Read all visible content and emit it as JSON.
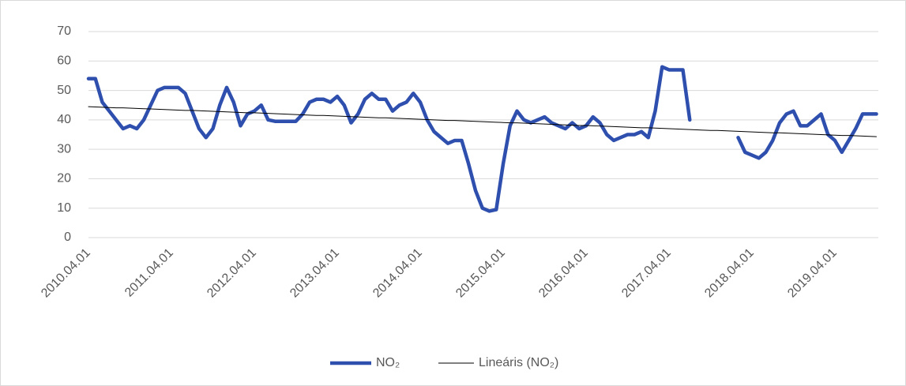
{
  "chart_data": {
    "type": "line",
    "categories": [
      "2010.04.01",
      null,
      null,
      null,
      null,
      null,
      null,
      null,
      null,
      null,
      null,
      null,
      "2011.04.01",
      null,
      null,
      null,
      null,
      null,
      null,
      null,
      null,
      null,
      null,
      null,
      "2012.04.01",
      null,
      null,
      null,
      null,
      null,
      null,
      null,
      null,
      null,
      null,
      null,
      "2013.04.01",
      null,
      null,
      null,
      null,
      null,
      null,
      null,
      null,
      null,
      null,
      null,
      "2014.04.01",
      null,
      null,
      null,
      null,
      null,
      null,
      null,
      null,
      null,
      null,
      null,
      "2015.04.01",
      null,
      null,
      null,
      null,
      null,
      null,
      null,
      null,
      null,
      null,
      null,
      "2016.04.01",
      null,
      null,
      null,
      null,
      null,
      null,
      null,
      null,
      null,
      null,
      null,
      "2017.04.01",
      null,
      null,
      null,
      null,
      null,
      null,
      null,
      null,
      null,
      null,
      null,
      "2018.04.01",
      null,
      null,
      null,
      null,
      null,
      null,
      null,
      null,
      null,
      null,
      null,
      "2019.04.01",
      null,
      null,
      null,
      null,
      null,
      null
    ],
    "series": [
      {
        "name": "NO₂",
        "color": "#2e4fad",
        "width": 4.5,
        "values": [
          54,
          54,
          46,
          43,
          40,
          37,
          38,
          37,
          40,
          45,
          50,
          51,
          51,
          51,
          49,
          43,
          37,
          34,
          37,
          45,
          51,
          46,
          38,
          42,
          43,
          45,
          40,
          39.5,
          39.5,
          39.5,
          39.5,
          42,
          46,
          47,
          47,
          46,
          48,
          45,
          39,
          42,
          47,
          49,
          47,
          47,
          43,
          45,
          46,
          49,
          46,
          40,
          36,
          34,
          32,
          33,
          33,
          25,
          16,
          10,
          9,
          9.5,
          25,
          38,
          43,
          40,
          39,
          40,
          41,
          39,
          38,
          37,
          39,
          37,
          38,
          41,
          39,
          35,
          33,
          34,
          35,
          35,
          36,
          34,
          43,
          58,
          57,
          57,
          57,
          40,
          null,
          null,
          null,
          null,
          null,
          null,
          34,
          29,
          28,
          27,
          29,
          33,
          39,
          42,
          43,
          38,
          38,
          40,
          42,
          35,
          33,
          29,
          33,
          37,
          42,
          42,
          42
        ]
      },
      {
        "name": "Lineáris (NO₂)",
        "color": "#000000",
        "width": 1,
        "values": [
          44.5,
          44.4,
          44.3,
          44.2,
          44.1,
          44.1,
          44.0,
          43.9,
          43.8,
          43.7,
          43.6,
          43.5,
          43.4,
          43.3,
          43.2,
          43.2,
          43.1,
          43.0,
          42.9,
          42.8,
          42.7,
          42.6,
          42.5,
          42.4,
          42.4,
          42.3,
          42.2,
          42.1,
          42.0,
          41.9,
          41.8,
          41.7,
          41.6,
          41.5,
          41.5,
          41.4,
          41.3,
          41.2,
          41.1,
          41.0,
          40.9,
          40.8,
          40.7,
          40.7,
          40.6,
          40.5,
          40.4,
          40.3,
          40.2,
          40.1,
          40.0,
          39.9,
          39.8,
          39.8,
          39.7,
          39.6,
          39.5,
          39.4,
          39.3,
          39.2,
          39.1,
          39.0,
          39.0,
          38.9,
          38.8,
          38.7,
          38.6,
          38.5,
          38.4,
          38.3,
          38.2,
          38.1,
          38.1,
          38.0,
          37.9,
          37.8,
          37.7,
          37.6,
          37.5,
          37.4,
          37.3,
          37.3,
          37.2,
          37.1,
          37.0,
          36.9,
          36.8,
          36.7,
          36.6,
          36.5,
          36.4,
          36.4,
          36.3,
          36.2,
          36.1,
          36.0,
          35.9,
          35.8,
          35.7,
          35.6,
          35.6,
          35.5,
          35.4,
          35.3,
          35.2,
          35.1,
          35.0,
          34.9,
          34.8,
          34.7,
          34.7,
          34.6,
          34.5,
          34.4,
          34.3
        ]
      }
    ],
    "ylim": [
      0,
      70
    ],
    "yticks": [
      0,
      10,
      20,
      30,
      40,
      50,
      60,
      70
    ],
    "grid": true,
    "legend": "bottom"
  }
}
